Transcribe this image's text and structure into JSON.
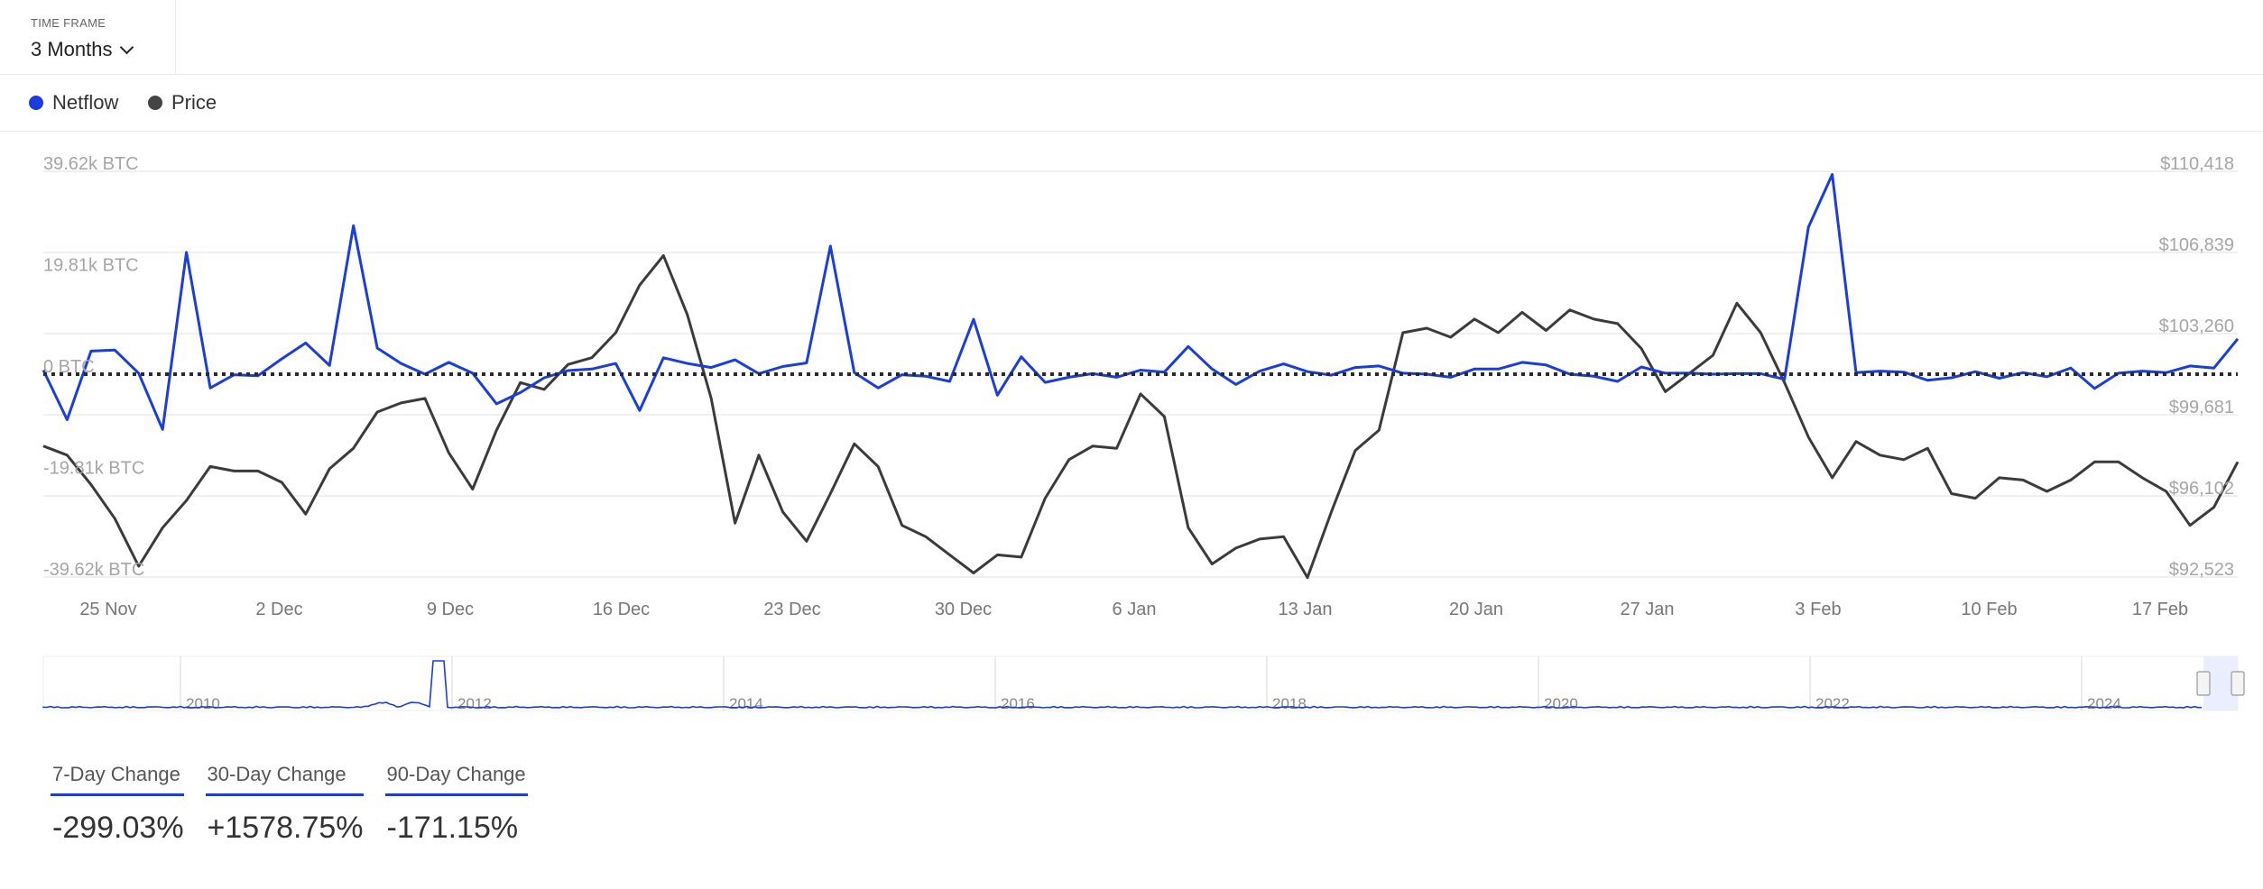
{
  "time_frame": {
    "label": "TIME FRAME",
    "value": "3 Months"
  },
  "legend": [
    {
      "name": "Netflow",
      "color": "#1a3de0"
    },
    {
      "name": "Price",
      "color": "#444444"
    }
  ],
  "chart_data": {
    "type": "line",
    "x_ticks": [
      "25 Nov",
      "2 Dec",
      "9 Dec",
      "16 Dec",
      "23 Dec",
      "30 Dec",
      "6 Jan",
      "13 Jan",
      "20 Jan",
      "27 Jan",
      "3 Feb",
      "10 Feb",
      "17 Feb"
    ],
    "left_axis": {
      "ticks": [
        "39.62k BTC",
        "19.81k BTC",
        "0 BTC",
        "-19.81k BTC",
        "-39.62k BTC"
      ],
      "range": [
        -39620,
        39620
      ]
    },
    "right_axis": {
      "ticks": [
        "$110,418",
        "$106,839",
        "$103,260",
        "$99,681",
        "$96,102",
        "$92,523"
      ],
      "range": [
        92523,
        110418
      ]
    },
    "zero_line": "dotted",
    "series": [
      {
        "name": "Netflow",
        "color": "#1a3de0",
        "axis": "left",
        "values": [
          800,
          -8900,
          4500,
          4700,
          200,
          -10800,
          23800,
          -2700,
          -100,
          -300,
          3000,
          6100,
          1700,
          29000,
          5100,
          2100,
          0,
          2300,
          200,
          -5800,
          -3600,
          -700,
          700,
          1000,
          2100,
          -7100,
          3200,
          2100,
          1300,
          2800,
          100,
          1500,
          2200,
          25000,
          300,
          -2700,
          -100,
          -400,
          -1400,
          10700,
          -4100,
          3400,
          -1600,
          -600,
          100,
          -600,
          800,
          400,
          5400,
          1000,
          -2000,
          600,
          2000,
          500,
          -200,
          1300,
          1600,
          200,
          0,
          -600,
          1000,
          1000,
          2300,
          1800,
          0,
          -400,
          -1400,
          1400,
          200,
          200,
          0,
          100,
          100,
          -1000,
          28700,
          39000,
          300,
          600,
          400,
          -1200,
          -700,
          500,
          -800,
          300,
          -500,
          1200,
          -2800,
          200,
          600,
          300,
          1600,
          1200,
          6900
        ],
        "x_span": "~22 Nov to ~21 Feb (daily)"
      },
      {
        "name": "Price",
        "color": "#444444",
        "axis": "right",
        "values": [
          98300,
          97900,
          96600,
          95100,
          93000,
          94700,
          95900,
          97400,
          97200,
          97200,
          96700,
          95300,
          97300,
          98200,
          99800,
          100200,
          100400,
          98000,
          96400,
          99000,
          101100,
          100800,
          101900,
          102200,
          103300,
          105400,
          106700,
          104100,
          100400,
          94900,
          97900,
          95400,
          94100,
          96200,
          98400,
          97400,
          94800,
          94300,
          93500,
          92700,
          93500,
          93400,
          96000,
          97700,
          98300,
          98200,
          100600,
          99600,
          94700,
          93100,
          93800,
          94200,
          94300,
          92500,
          95400,
          98100,
          99000,
          103300,
          103500,
          103100,
          103900,
          103300,
          104200,
          103400,
          104300,
          103900,
          103700,
          102600,
          100700,
          101500,
          102300,
          104600,
          103300,
          101100,
          98700,
          96900,
          98500,
          97900,
          97700,
          98200,
          96200,
          96000,
          96900,
          96800,
          96300,
          96800,
          97600,
          97600,
          96900,
          96300,
          94800,
          95600,
          97600
        ]
      }
    ],
    "navigator": {
      "years": [
        "2010",
        "2012",
        "2014",
        "2016",
        "2018",
        "2020",
        "2022",
        "2024"
      ]
    }
  },
  "changes": [
    {
      "label": "7-Day Change",
      "value": "-299.03%"
    },
    {
      "label": "30-Day Change",
      "value": "+1578.75%"
    },
    {
      "label": "90-Day Change",
      "value": "-171.15%"
    }
  ]
}
